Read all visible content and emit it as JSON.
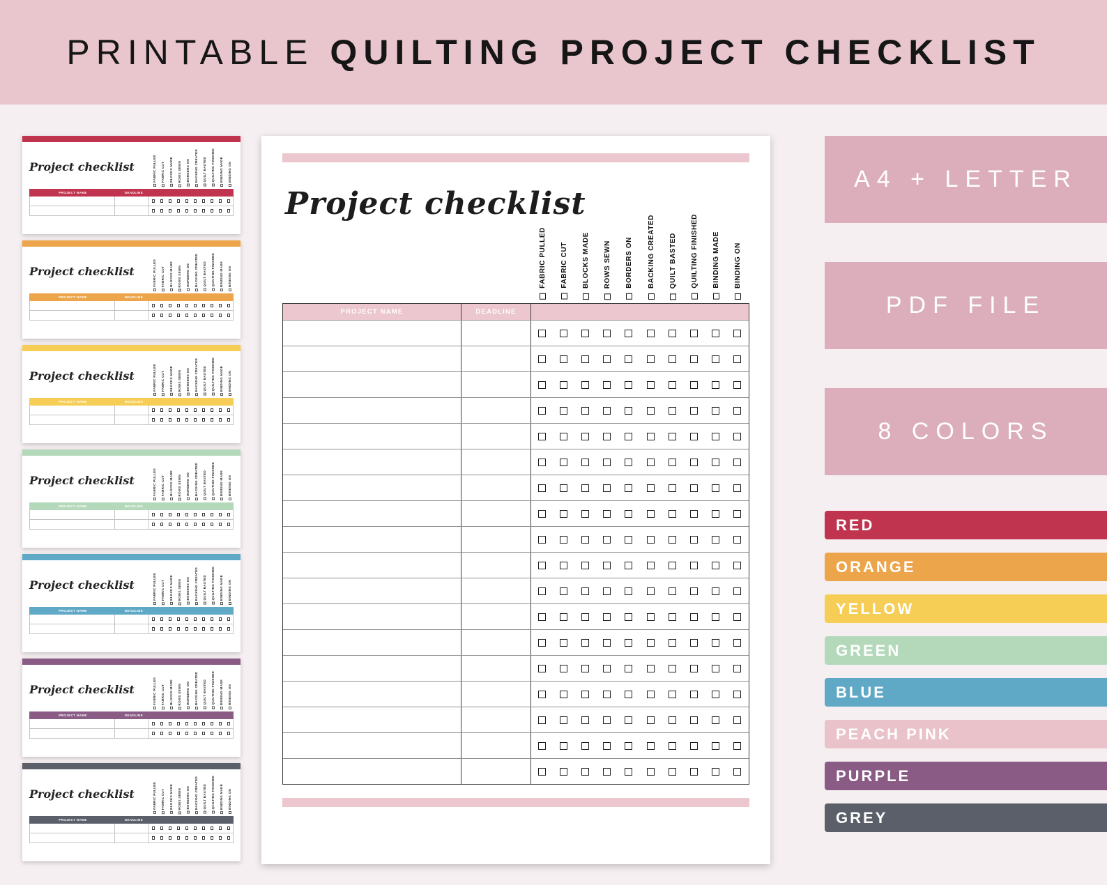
{
  "theme": {
    "page_bg": "#f5eff1",
    "banner_bg": "#e9c6ce",
    "badge_bg": "#dcaebb"
  },
  "header": {
    "title_regular": "PRINTABLE",
    "title_bold": "QUILTING PROJECT CHECKLIST"
  },
  "checklist": {
    "title": "Project checklist",
    "step_columns": [
      "FABRIC PULLED",
      "FABRIC CUT",
      "BLOCKS MADE",
      "ROWS SEWN",
      "BORDERS ON",
      "BACKING CREATED",
      "QUILT BASTED",
      "QUILTING FINISHED",
      "BINDING MADE",
      "BINDING ON"
    ],
    "project_name_header": "PROJECT NAME",
    "deadline_header": "DEADLINE",
    "row_count": 18,
    "preview_accent": "#ecc7cf"
  },
  "badges": [
    "A4 + LETTER",
    "PDF FILE",
    "8 COLORS"
  ],
  "colors": [
    {
      "name": "RED",
      "hex": "#c0344f"
    },
    {
      "name": "ORANGE",
      "hex": "#eda54b"
    },
    {
      "name": "YELLOW",
      "hex": "#f6cd55"
    },
    {
      "name": "GREEN",
      "hex": "#b4d9ba"
    },
    {
      "name": "BLUE",
      "hex": "#60a9c6"
    },
    {
      "name": "PEACH PINK",
      "hex": "#e9c2ca"
    },
    {
      "name": "PURPLE",
      "hex": "#8a5c85"
    },
    {
      "name": "GREY",
      "hex": "#5a5f6a"
    }
  ],
  "thumbnails": [
    "RED",
    "ORANGE",
    "YELLOW",
    "GREEN",
    "BLUE",
    "PURPLE",
    "GREY"
  ]
}
